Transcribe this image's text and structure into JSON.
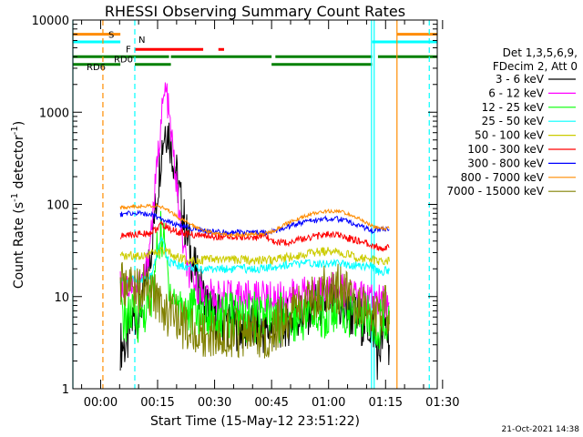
{
  "chart_data": {
    "type": "line",
    "title": "RHESSI Observing Summary Count Rates",
    "xlabel": "Start Time (15-May-12 23:51:22)",
    "ylabel_main": "Count Rate (s",
    "ylabel_exp1": "-1",
    "ylabel_mid": " detector",
    "ylabel_exp2": "-1",
    "ylabel_end": ")",
    "y_scale": "log",
    "ylim": [
      1,
      10000
    ],
    "xlim_min": [
      -7.3,
      88.6
    ],
    "x_ticks": [
      {
        "m": 0,
        "label": "00:00"
      },
      {
        "m": 15,
        "label": "00:15"
      },
      {
        "m": 30,
        "label": "00:30"
      },
      {
        "m": 45,
        "label": "00:45"
      },
      {
        "m": 60,
        "label": "01:00"
      },
      {
        "m": 75,
        "label": "01:15"
      },
      {
        "m": 90,
        "label": "01:30"
      }
    ],
    "y_ticks": [
      {
        "v": 1,
        "label": "1"
      },
      {
        "v": 10,
        "label": "10"
      },
      {
        "v": 100,
        "label": "100"
      },
      {
        "v": 1000,
        "label": "1000"
      },
      {
        "v": 10000,
        "label": "10000"
      }
    ],
    "legend_header": [
      "Det 1,3,5,6,9,",
      "FDecim 2, Att 0"
    ],
    "legend_position": "right",
    "timestamp": "21-Oct-2021 14:38",
    "series": [
      {
        "name": "3 - 6 keV",
        "color": "#000000",
        "points": [
          [
            5.2,
            3
          ],
          [
            7,
            3
          ],
          [
            8,
            5
          ],
          [
            9,
            6
          ],
          [
            10,
            7
          ],
          [
            11,
            9
          ],
          [
            12,
            14
          ],
          [
            13,
            28
          ],
          [
            14,
            60
          ],
          [
            15,
            150
          ],
          [
            16,
            400
          ],
          [
            17,
            700
          ],
          [
            18,
            600
          ],
          [
            19,
            350
          ],
          [
            20,
            200
          ],
          [
            21,
            110
          ],
          [
            22,
            65
          ],
          [
            23,
            40
          ],
          [
            24,
            26
          ],
          [
            25,
            18
          ],
          [
            26,
            13
          ],
          [
            27,
            10
          ],
          [
            28,
            8
          ],
          [
            30,
            6.5
          ],
          [
            32,
            5.5
          ],
          [
            35,
            5
          ],
          [
            38,
            4.5
          ],
          [
            41,
            4.3
          ],
          [
            44,
            4.2
          ],
          [
            45,
            4.5
          ],
          [
            47,
            5
          ],
          [
            50,
            5.5
          ],
          [
            53,
            6.5
          ],
          [
            56,
            7.5
          ],
          [
            59,
            8.5
          ],
          [
            61,
            8.5
          ],
          [
            64,
            7
          ],
          [
            67,
            6
          ],
          [
            70,
            5
          ],
          [
            72,
            4.5
          ],
          [
            73,
            2
          ],
          [
            73.3,
            2.5
          ],
          [
            75,
            5
          ],
          [
            76,
            3
          ]
        ]
      },
      {
        "name": "6 - 12 keV",
        "color": "#ff00ff",
        "points": [
          [
            5.2,
            13
          ],
          [
            7,
            13
          ],
          [
            9,
            13
          ],
          [
            11,
            14
          ],
          [
            12,
            20
          ],
          [
            13,
            40
          ],
          [
            14,
            100
          ],
          [
            15,
            300
          ],
          [
            16,
            900
          ],
          [
            17,
            1700
          ],
          [
            17.5,
            1500
          ],
          [
            18,
            900
          ],
          [
            19,
            400
          ],
          [
            20,
            160
          ],
          [
            21,
            60
          ],
          [
            22,
            30
          ],
          [
            23,
            18
          ],
          [
            25,
            13
          ],
          [
            27,
            11
          ],
          [
            30,
            10
          ],
          [
            33,
            10
          ],
          [
            36,
            10
          ],
          [
            40,
            10
          ],
          [
            44,
            10
          ],
          [
            45,
            9.5
          ],
          [
            48,
            10
          ],
          [
            51,
            10.5
          ],
          [
            54,
            11
          ],
          [
            57,
            12
          ],
          [
            60,
            12.5
          ],
          [
            63,
            12
          ],
          [
            66,
            11
          ],
          [
            69,
            10
          ],
          [
            71.5,
            9
          ],
          [
            73,
            9
          ],
          [
            75,
            8.5
          ],
          [
            76,
            8.5
          ]
        ]
      },
      {
        "name": "12 - 25 keV",
        "color": "#00ff00",
        "points": [
          [
            5.2,
            6
          ],
          [
            8,
            6
          ],
          [
            10,
            6
          ],
          [
            12,
            7
          ],
          [
            13,
            9
          ],
          [
            14,
            14
          ],
          [
            15,
            35
          ],
          [
            16,
            50
          ],
          [
            17,
            30
          ],
          [
            18,
            15
          ],
          [
            19,
            10
          ],
          [
            21,
            8
          ],
          [
            24,
            7
          ],
          [
            28,
            6.5
          ],
          [
            32,
            6
          ],
          [
            36,
            6
          ],
          [
            40,
            6
          ],
          [
            44,
            6
          ],
          [
            45,
            5.5
          ],
          [
            48,
            6
          ],
          [
            52,
            6
          ],
          [
            56,
            6.5
          ],
          [
            60,
            6.5
          ],
          [
            64,
            6.5
          ],
          [
            68,
            6
          ],
          [
            71.5,
            6
          ],
          [
            73,
            5
          ],
          [
            76,
            5
          ]
        ]
      },
      {
        "name": "25 - 50 keV",
        "color": "#00ffff",
        "points": [
          [
            5.2,
            15
          ],
          [
            8,
            15
          ],
          [
            11,
            15
          ],
          [
            13,
            16
          ],
          [
            14,
            20
          ],
          [
            15,
            32
          ],
          [
            16,
            42
          ],
          [
            17,
            30
          ],
          [
            18,
            24
          ],
          [
            20,
            22
          ],
          [
            23,
            21
          ],
          [
            26,
            20
          ],
          [
            30,
            20
          ],
          [
            34,
            20
          ],
          [
            38,
            20
          ],
          [
            42,
            20
          ],
          [
            44,
            20
          ],
          [
            45,
            21
          ],
          [
            48,
            22
          ],
          [
            52,
            22.5
          ],
          [
            56,
            23
          ],
          [
            60,
            23
          ],
          [
            64,
            22.5
          ],
          [
            68,
            22
          ],
          [
            71.5,
            21
          ],
          [
            73,
            19
          ],
          [
            76,
            19
          ]
        ]
      },
      {
        "name": "50 - 100 keV",
        "color": "#cccc00",
        "points": [
          [
            5.2,
            27
          ],
          [
            8,
            28
          ],
          [
            11,
            28
          ],
          [
            13,
            29
          ],
          [
            15,
            30
          ],
          [
            17,
            31
          ],
          [
            19,
            28
          ],
          [
            22,
            25
          ],
          [
            26,
            25
          ],
          [
            30,
            25
          ],
          [
            34,
            25
          ],
          [
            38,
            25
          ],
          [
            42,
            25
          ],
          [
            44,
            25
          ],
          [
            45,
            25
          ],
          [
            48,
            26
          ],
          [
            52,
            28
          ],
          [
            56,
            30
          ],
          [
            60,
            31
          ],
          [
            63,
            30
          ],
          [
            66,
            28
          ],
          [
            69,
            26
          ],
          [
            71.5,
            25
          ],
          [
            73,
            24
          ],
          [
            76,
            24
          ]
        ]
      },
      {
        "name": "100 - 300 keV",
        "color": "#ff0000",
        "points": [
          [
            5.2,
            45
          ],
          [
            8,
            47
          ],
          [
            11,
            48
          ],
          [
            13,
            49
          ],
          [
            15,
            55
          ],
          [
            16,
            60
          ],
          [
            17,
            58
          ],
          [
            19,
            52
          ],
          [
            22,
            48
          ],
          [
            26,
            46
          ],
          [
            30,
            45
          ],
          [
            34,
            44
          ],
          [
            38,
            44
          ],
          [
            42,
            44
          ],
          [
            44,
            44
          ],
          [
            45,
            40
          ],
          [
            48,
            38
          ],
          [
            52,
            41
          ],
          [
            56,
            45
          ],
          [
            60,
            47
          ],
          [
            63,
            46
          ],
          [
            66,
            42
          ],
          [
            69,
            39
          ],
          [
            71.5,
            36
          ],
          [
            73,
            34
          ],
          [
            76,
            34
          ]
        ]
      },
      {
        "name": "300 - 800 keV",
        "color": "#0000ff",
        "points": [
          [
            5.2,
            78
          ],
          [
            8,
            80
          ],
          [
            11,
            80
          ],
          [
            13,
            78
          ],
          [
            15,
            72
          ],
          [
            17,
            68
          ],
          [
            19,
            62
          ],
          [
            21,
            58
          ],
          [
            24,
            55
          ],
          [
            27,
            52
          ],
          [
            30,
            50
          ],
          [
            34,
            50
          ],
          [
            38,
            50
          ],
          [
            42,
            50
          ],
          [
            44,
            50
          ],
          [
            45,
            50
          ],
          [
            48,
            55
          ],
          [
            52,
            62
          ],
          [
            56,
            67
          ],
          [
            60,
            70
          ],
          [
            63,
            69
          ],
          [
            66,
            63
          ],
          [
            69,
            57
          ],
          [
            71.5,
            52
          ],
          [
            73,
            53
          ],
          [
            76,
            53
          ]
        ]
      },
      {
        "name": "800 - 7000 keV",
        "color": "#ff8c00",
        "points": [
          [
            5.2,
            92
          ],
          [
            8,
            95
          ],
          [
            11,
            96
          ],
          [
            13,
            97
          ],
          [
            15,
            96
          ],
          [
            17,
            90
          ],
          [
            19,
            80
          ],
          [
            21,
            70
          ],
          [
            24,
            60
          ],
          [
            27,
            53
          ],
          [
            30,
            48
          ],
          [
            34,
            47
          ],
          [
            38,
            47
          ],
          [
            42,
            48
          ],
          [
            44,
            49
          ],
          [
            45,
            50
          ],
          [
            48,
            60
          ],
          [
            52,
            70
          ],
          [
            56,
            80
          ],
          [
            60,
            85
          ],
          [
            63,
            84
          ],
          [
            66,
            76
          ],
          [
            69,
            67
          ],
          [
            71.5,
            58
          ],
          [
            73,
            55
          ],
          [
            76,
            55
          ]
        ]
      },
      {
        "name": "7000 - 15000 keV",
        "color": "#808000",
        "points": [
          [
            5.2,
            13
          ],
          [
            8,
            13
          ],
          [
            11,
            12
          ],
          [
            13,
            11
          ],
          [
            15,
            9
          ],
          [
            17,
            7.5
          ],
          [
            19,
            6
          ],
          [
            21,
            5.2
          ],
          [
            24,
            4.5
          ],
          [
            27,
            4
          ],
          [
            30,
            4
          ],
          [
            34,
            4
          ],
          [
            38,
            4
          ],
          [
            42,
            4
          ],
          [
            44,
            4
          ],
          [
            45,
            4.2
          ],
          [
            48,
            5.5
          ],
          [
            52,
            7.5
          ],
          [
            56,
            10
          ],
          [
            60,
            12.5
          ],
          [
            63,
            12
          ],
          [
            66,
            10
          ],
          [
            69,
            8
          ],
          [
            71.5,
            7
          ],
          [
            73,
            7
          ],
          [
            76,
            7
          ]
        ]
      }
    ],
    "state_bars": [
      {
        "label": "S",
        "color": "#ff8c00",
        "v": 7000,
        "segments": [
          [
            -7.3,
            5.2
          ],
          [
            78,
            88.6
          ]
        ]
      },
      {
        "label": "N",
        "color": "#00ffff",
        "v": 5800,
        "segments": [
          [
            -7.3,
            5.2
          ],
          [
            71.5,
            88.6
          ]
        ]
      },
      {
        "label": "F",
        "color": "#ff0000",
        "v": 4800,
        "segments": [
          [
            9,
            27
          ],
          [
            31,
            32.5
          ]
        ]
      },
      {
        "label": "RD0",
        "color": "#008000",
        "v": 4000,
        "segments": [
          [
            -7.3,
            18
          ],
          [
            18.5,
            45
          ],
          [
            46,
            71.5
          ],
          [
            73,
            88.6
          ]
        ]
      },
      {
        "label": "RD6",
        "color": "#008000",
        "v": 3300,
        "segments": [
          [
            -7.3,
            5.2
          ],
          [
            9,
            18.5
          ],
          [
            45,
            71.5
          ]
        ]
      }
    ],
    "vlines": [
      {
        "x": -7.3,
        "color": "#00ffff",
        "dash": false
      },
      {
        "x": 0.6,
        "color": "#ff8c00",
        "dash": true
      },
      {
        "x": 9,
        "color": "#00ffff",
        "dash": true
      },
      {
        "x": 71.3,
        "color": "#00ffff",
        "dash": false
      },
      {
        "x": 72,
        "color": "#00ffff",
        "dash": false
      },
      {
        "x": 78,
        "color": "#ff8c00",
        "dash": false
      },
      {
        "x": 86.5,
        "color": "#00ffff",
        "dash": true
      }
    ]
  }
}
